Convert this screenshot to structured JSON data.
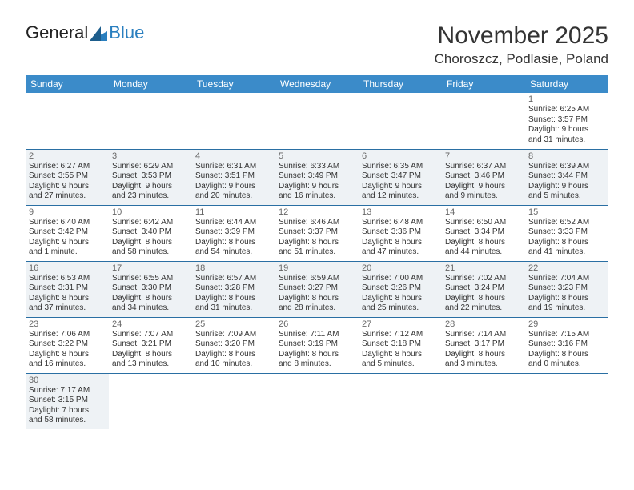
{
  "logo": {
    "text1": "General",
    "text2": "Blue"
  },
  "title": "November 2025",
  "location": "Choroszcz, Podlasie, Poland",
  "colors": {
    "header_bg": "#3b8bc9",
    "border": "#2a6fa3",
    "alt_row_bg": "#eef2f5",
    "background": "#ffffff",
    "text": "#333333"
  },
  "weekdays": [
    "Sunday",
    "Monday",
    "Tuesday",
    "Wednesday",
    "Thursday",
    "Friday",
    "Saturday"
  ],
  "weeks": [
    [
      null,
      null,
      null,
      null,
      null,
      null,
      {
        "n": "1",
        "sr": "Sunrise: 6:25 AM",
        "ss": "Sunset: 3:57 PM",
        "d1": "Daylight: 9 hours",
        "d2": "and 31 minutes."
      }
    ],
    [
      {
        "n": "2",
        "sr": "Sunrise: 6:27 AM",
        "ss": "Sunset: 3:55 PM",
        "d1": "Daylight: 9 hours",
        "d2": "and 27 minutes."
      },
      {
        "n": "3",
        "sr": "Sunrise: 6:29 AM",
        "ss": "Sunset: 3:53 PM",
        "d1": "Daylight: 9 hours",
        "d2": "and 23 minutes."
      },
      {
        "n": "4",
        "sr": "Sunrise: 6:31 AM",
        "ss": "Sunset: 3:51 PM",
        "d1": "Daylight: 9 hours",
        "d2": "and 20 minutes."
      },
      {
        "n": "5",
        "sr": "Sunrise: 6:33 AM",
        "ss": "Sunset: 3:49 PM",
        "d1": "Daylight: 9 hours",
        "d2": "and 16 minutes."
      },
      {
        "n": "6",
        "sr": "Sunrise: 6:35 AM",
        "ss": "Sunset: 3:47 PM",
        "d1": "Daylight: 9 hours",
        "d2": "and 12 minutes."
      },
      {
        "n": "7",
        "sr": "Sunrise: 6:37 AM",
        "ss": "Sunset: 3:46 PM",
        "d1": "Daylight: 9 hours",
        "d2": "and 9 minutes."
      },
      {
        "n": "8",
        "sr": "Sunrise: 6:39 AM",
        "ss": "Sunset: 3:44 PM",
        "d1": "Daylight: 9 hours",
        "d2": "and 5 minutes."
      }
    ],
    [
      {
        "n": "9",
        "sr": "Sunrise: 6:40 AM",
        "ss": "Sunset: 3:42 PM",
        "d1": "Daylight: 9 hours",
        "d2": "and 1 minute."
      },
      {
        "n": "10",
        "sr": "Sunrise: 6:42 AM",
        "ss": "Sunset: 3:40 PM",
        "d1": "Daylight: 8 hours",
        "d2": "and 58 minutes."
      },
      {
        "n": "11",
        "sr": "Sunrise: 6:44 AM",
        "ss": "Sunset: 3:39 PM",
        "d1": "Daylight: 8 hours",
        "d2": "and 54 minutes."
      },
      {
        "n": "12",
        "sr": "Sunrise: 6:46 AM",
        "ss": "Sunset: 3:37 PM",
        "d1": "Daylight: 8 hours",
        "d2": "and 51 minutes."
      },
      {
        "n": "13",
        "sr": "Sunrise: 6:48 AM",
        "ss": "Sunset: 3:36 PM",
        "d1": "Daylight: 8 hours",
        "d2": "and 47 minutes."
      },
      {
        "n": "14",
        "sr": "Sunrise: 6:50 AM",
        "ss": "Sunset: 3:34 PM",
        "d1": "Daylight: 8 hours",
        "d2": "and 44 minutes."
      },
      {
        "n": "15",
        "sr": "Sunrise: 6:52 AM",
        "ss": "Sunset: 3:33 PM",
        "d1": "Daylight: 8 hours",
        "d2": "and 41 minutes."
      }
    ],
    [
      {
        "n": "16",
        "sr": "Sunrise: 6:53 AM",
        "ss": "Sunset: 3:31 PM",
        "d1": "Daylight: 8 hours",
        "d2": "and 37 minutes."
      },
      {
        "n": "17",
        "sr": "Sunrise: 6:55 AM",
        "ss": "Sunset: 3:30 PM",
        "d1": "Daylight: 8 hours",
        "d2": "and 34 minutes."
      },
      {
        "n": "18",
        "sr": "Sunrise: 6:57 AM",
        "ss": "Sunset: 3:28 PM",
        "d1": "Daylight: 8 hours",
        "d2": "and 31 minutes."
      },
      {
        "n": "19",
        "sr": "Sunrise: 6:59 AM",
        "ss": "Sunset: 3:27 PM",
        "d1": "Daylight: 8 hours",
        "d2": "and 28 minutes."
      },
      {
        "n": "20",
        "sr": "Sunrise: 7:00 AM",
        "ss": "Sunset: 3:26 PM",
        "d1": "Daylight: 8 hours",
        "d2": "and 25 minutes."
      },
      {
        "n": "21",
        "sr": "Sunrise: 7:02 AM",
        "ss": "Sunset: 3:24 PM",
        "d1": "Daylight: 8 hours",
        "d2": "and 22 minutes."
      },
      {
        "n": "22",
        "sr": "Sunrise: 7:04 AM",
        "ss": "Sunset: 3:23 PM",
        "d1": "Daylight: 8 hours",
        "d2": "and 19 minutes."
      }
    ],
    [
      {
        "n": "23",
        "sr": "Sunrise: 7:06 AM",
        "ss": "Sunset: 3:22 PM",
        "d1": "Daylight: 8 hours",
        "d2": "and 16 minutes."
      },
      {
        "n": "24",
        "sr": "Sunrise: 7:07 AM",
        "ss": "Sunset: 3:21 PM",
        "d1": "Daylight: 8 hours",
        "d2": "and 13 minutes."
      },
      {
        "n": "25",
        "sr": "Sunrise: 7:09 AM",
        "ss": "Sunset: 3:20 PM",
        "d1": "Daylight: 8 hours",
        "d2": "and 10 minutes."
      },
      {
        "n": "26",
        "sr": "Sunrise: 7:11 AM",
        "ss": "Sunset: 3:19 PM",
        "d1": "Daylight: 8 hours",
        "d2": "and 8 minutes."
      },
      {
        "n": "27",
        "sr": "Sunrise: 7:12 AM",
        "ss": "Sunset: 3:18 PM",
        "d1": "Daylight: 8 hours",
        "d2": "and 5 minutes."
      },
      {
        "n": "28",
        "sr": "Sunrise: 7:14 AM",
        "ss": "Sunset: 3:17 PM",
        "d1": "Daylight: 8 hours",
        "d2": "and 3 minutes."
      },
      {
        "n": "29",
        "sr": "Sunrise: 7:15 AM",
        "ss": "Sunset: 3:16 PM",
        "d1": "Daylight: 8 hours",
        "d2": "and 0 minutes."
      }
    ],
    [
      {
        "n": "30",
        "sr": "Sunrise: 7:17 AM",
        "ss": "Sunset: 3:15 PM",
        "d1": "Daylight: 7 hours",
        "d2": "and 58 minutes."
      },
      null,
      null,
      null,
      null,
      null,
      null
    ]
  ]
}
